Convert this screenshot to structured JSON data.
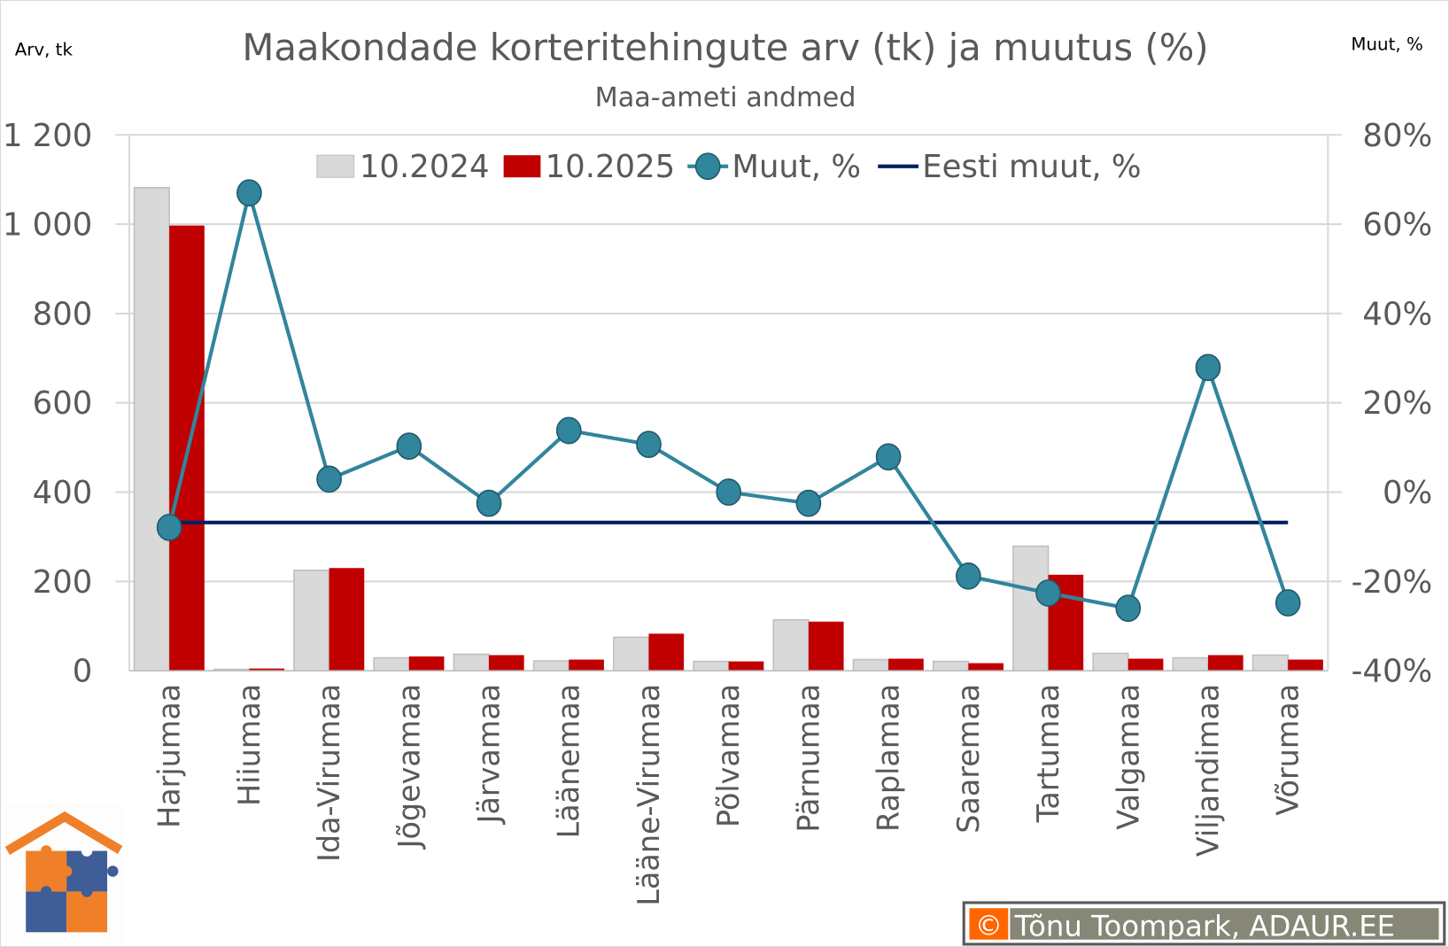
{
  "chart_data": {
    "type": "bar",
    "title": "Maakondade korteritehingute arv (tk) ja muutus (%)",
    "subtitle": "Maa-ameti andmed",
    "ylabel": "Arv, tk",
    "y2label": "Muut, %",
    "ylim": [
      0,
      1200
    ],
    "y2lim": [
      -40,
      80
    ],
    "yticks": [
      "0",
      "200",
      "400",
      "600",
      "800",
      "1 000",
      "1 200"
    ],
    "ytick_values": [
      0,
      200,
      400,
      600,
      800,
      1000,
      1200
    ],
    "y2ticks": [
      "-40%",
      "-20%",
      "0%",
      "20%",
      "40%",
      "60%",
      "80%"
    ],
    "y2tick_values": [
      -40,
      -20,
      0,
      20,
      40,
      60,
      80
    ],
    "grid": true,
    "legend_position": "top-center",
    "categories": [
      "Harjumaa",
      "Hiiumaa",
      "Ida-Virumaa",
      "Jõgevamaa",
      "Järvamaa",
      "Läänemaa",
      "Lääne-Virumaa",
      "Põlvamaa",
      "Pärnumaa",
      "Raplamaa",
      "Saaremaa",
      "Tartumaa",
      "Valgamaa",
      "Viljandimaa",
      "Võrumaa"
    ],
    "series": [
      {
        "name": "10.2024",
        "type": "bar",
        "axis": "left",
        "color": "#d9d9d9",
        "values": [
          1082,
          3,
          225,
          29,
          37,
          22,
          75,
          21,
          114,
          25,
          21,
          279,
          39,
          29,
          35
        ]
      },
      {
        "name": "10.2025",
        "type": "bar",
        "axis": "left",
        "color": "#c00000",
        "values": [
          997,
          5,
          230,
          32,
          35,
          25,
          83,
          21,
          110,
          27,
          17,
          215,
          27,
          35,
          25
        ]
      },
      {
        "name": "Muut, %",
        "type": "line",
        "axis": "right",
        "color": "#31859c",
        "values": [
          -7.9,
          67,
          2.9,
          10.3,
          -2.5,
          13.8,
          10.7,
          0,
          -2.5,
          7.9,
          -18.8,
          -22.6,
          -26,
          27.9,
          -24.8
        ]
      },
      {
        "name": "Eesti muut, %",
        "type": "line",
        "axis": "right",
        "color": "#002060",
        "values": [
          -6.8,
          -6.8,
          -6.8,
          -6.8,
          -6.8,
          -6.8,
          -6.8,
          -6.8,
          -6.8,
          -6.8,
          -6.8,
          -6.8,
          -6.8,
          -6.8,
          -6.8
        ]
      }
    ]
  },
  "copyright": {
    "symbol": "©",
    "text": "Tõnu Toompark, ADAUR.EE"
  },
  "logo": {
    "name": "ADAUR house puzzle logo"
  }
}
